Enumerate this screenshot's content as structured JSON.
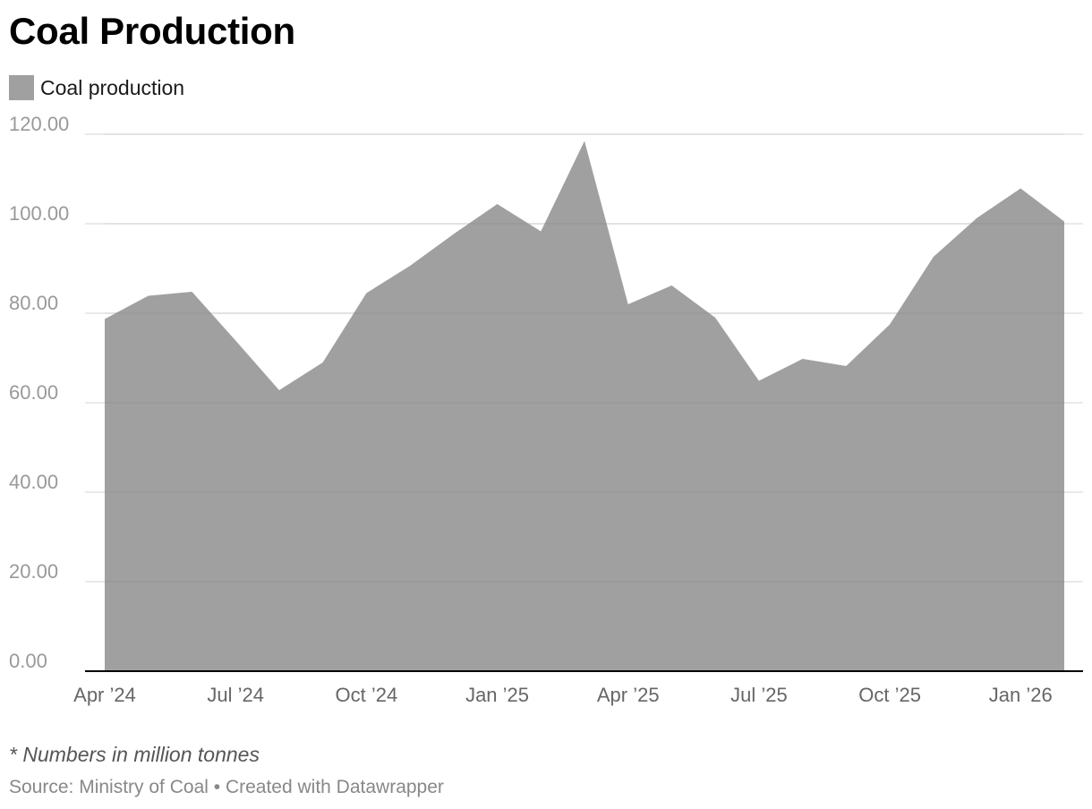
{
  "title": "Coal Production",
  "note": "* Numbers in million tonnes",
  "footer": {
    "source": "Source: Ministry of Coal",
    "separator": " • ",
    "credit": "Created with Datawrapper"
  },
  "colors": {
    "area": "#a0a0a0",
    "grid": "#e2e2e2",
    "axis": "#000000",
    "tick_text": "#999999",
    "x_tick_text": "#666666"
  },
  "chart_data": {
    "type": "area",
    "title": "Coal Production",
    "xlabel": "",
    "ylabel": "",
    "ylim": [
      0,
      120
    ],
    "grid": true,
    "legend_position": "top-left",
    "x_ticks": [
      {
        "label": "Apr ’24",
        "index": 0
      },
      {
        "label": "Jul ’24",
        "index": 3
      },
      {
        "label": "Oct ’24",
        "index": 6
      },
      {
        "label": "Jan ’25",
        "index": 9
      },
      {
        "label": "Apr ’25",
        "index": 12
      },
      {
        "label": "Jul ’25",
        "index": 15
      },
      {
        "label": "Oct ’25",
        "index": 18
      },
      {
        "label": "Jan ’26",
        "index": 21
      }
    ],
    "y_ticks": [
      "0.00",
      "20.00",
      "40.00",
      "60.00",
      "80.00",
      "100.00",
      "120.00"
    ],
    "y_tick_values": [
      0,
      20,
      40,
      60,
      80,
      100,
      120
    ],
    "x": [
      "Apr 2024",
      "May 2024",
      "Jun 2024",
      "Jul 2024",
      "Aug 2024",
      "Sep 2024",
      "Oct 2024",
      "Nov 2024",
      "Dec 2024",
      "Jan 2025",
      "Feb 2025",
      "Mar 2025",
      "Apr 2025",
      "May 2025",
      "Jun 2025",
      "Jul 2025",
      "Aug 2025",
      "Sep 2025",
      "Oct 2025",
      "Nov 2025",
      "Dec 2025",
      "Jan 2026",
      "Feb 2026"
    ],
    "series": [
      {
        "name": "Coal production",
        "values": [
          78.7,
          83.9,
          84.8,
          73.9,
          62.8,
          69.0,
          84.5,
          90.6,
          97.7,
          104.4,
          98.3,
          118.5,
          82.0,
          86.2,
          79.0,
          64.9,
          69.8,
          68.2,
          77.5,
          92.6,
          101.3,
          107.9,
          100.5
        ]
      }
    ]
  }
}
